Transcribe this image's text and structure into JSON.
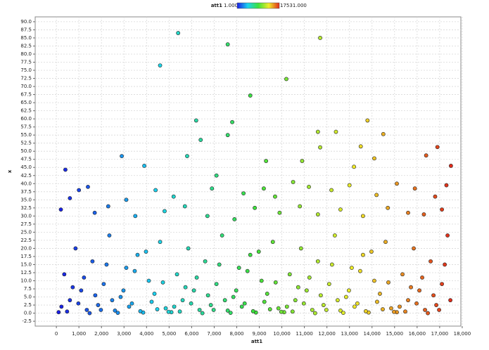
{
  "chart_data": {
    "type": "scatter",
    "color_title": "att1",
    "color_min": {
      "value": 1,
      "label": "1.000"
    },
    "color_max": {
      "value": 17531,
      "label": "17531.000"
    },
    "colormap": [
      "#1a1ae6",
      "#1ad2f0",
      "#3ce23c",
      "#f0ec28",
      "#e02a1a"
    ],
    "xlabel": "att1",
    "ylabel": "x",
    "grid": true,
    "xlim": [
      -940,
      17940
    ],
    "ylim": [
      -4,
      91.5
    ],
    "xticks": [
      0,
      {
        "value": 1000,
        "label": "1,000"
      },
      {
        "value": 2000,
        "label": "2,000"
      },
      {
        "value": 3000,
        "label": "3,000"
      },
      {
        "value": 4000,
        "label": "4,000"
      },
      {
        "value": 5000,
        "label": "5,000"
      },
      {
        "value": 6000,
        "label": "6,000"
      },
      {
        "value": 7000,
        "label": "7,000"
      },
      {
        "value": 8000,
        "label": "8,000"
      },
      {
        "value": 9000,
        "label": "9,000"
      },
      {
        "value": 10000,
        "label": "10,000"
      },
      {
        "value": 11000,
        "label": "11,000"
      },
      {
        "value": 12000,
        "label": "12,000"
      },
      {
        "value": 13000,
        "label": "13,000"
      },
      {
        "value": 14000,
        "label": "14,000"
      },
      {
        "value": 15000,
        "label": "15,000"
      },
      {
        "value": 16000,
        "label": "16,000"
      },
      {
        "value": 17000,
        "label": "17,000"
      },
      {
        "value": 18000,
        "label": "18,000"
      }
    ],
    "yticks": [
      -2.5,
      {
        "value": 0,
        "label": "0.0"
      },
      2.5,
      {
        "value": 5,
        "label": "5.0"
      },
      7.5,
      {
        "value": 10,
        "label": "10.0"
      },
      12.5,
      {
        "value": 15,
        "label": "15.0"
      },
      17.5,
      {
        "value": 20,
        "label": "20.0"
      },
      22.5,
      {
        "value": 25,
        "label": "25.0"
      },
      27.5,
      {
        "value": 30,
        "label": "30.0"
      },
      32.5,
      {
        "value": 35,
        "label": "35.0"
      },
      37.5,
      {
        "value": 40,
        "label": "40.0"
      },
      42.5,
      {
        "value": 45,
        "label": "45.0"
      },
      47.5,
      {
        "value": 50,
        "label": "50.0"
      },
      52.5,
      {
        "value": 55,
        "label": "55.0"
      },
      57.5,
      {
        "value": 60,
        "label": "60.0"
      },
      62.5,
      {
        "value": 65,
        "label": "65.0"
      },
      67.5,
      {
        "value": 70,
        "label": "70.0"
      },
      72.5,
      {
        "value": 75,
        "label": "75.0"
      },
      77.5,
      {
        "value": 80,
        "label": "80.0"
      },
      82.5,
      {
        "value": 85,
        "label": "85.0"
      },
      87.5,
      {
        "value": 90,
        "label": "90.0"
      }
    ],
    "x": [
      5400,
      11700,
      7600,
      4600,
      10200,
      8600,
      6200,
      7800,
      13800,
      11600,
      12400,
      7600,
      14500,
      6400,
      11700,
      13500,
      16900,
      2900,
      5800,
      16400,
      17500,
      400,
      3900,
      9300,
      10900,
      13200,
      14100,
      7100,
      1000,
      1400,
      600,
      2300,
      3100,
      4400,
      5200,
      6900,
      8300,
      9200,
      9700,
      10500,
      11200,
      12200,
      13000,
      14200,
      15100,
      15900,
      16800,
      17300,
      200,
      1700,
      3500,
      4800,
      5700,
      6700,
      7900,
      8800,
      9900,
      10800,
      11600,
      12600,
      13600,
      14700,
      15600,
      16300,
      17100,
      100,
      350,
      600,
      850,
      1100,
      1350,
      1600,
      1850,
      2100,
      2350,
      2600,
      2850,
      3100,
      3350,
      3600,
      3850,
      4100,
      4350,
      4600,
      4850,
      5100,
      5350,
      5600,
      5850,
      6100,
      6350,
      6600,
      6850,
      7100,
      7350,
      7600,
      7850,
      8100,
      8350,
      8600,
      8850,
      9100,
      9350,
      9600,
      9850,
      10100,
      10350,
      10600,
      10850,
      11100,
      11350,
      11600,
      11850,
      12100,
      12350,
      12600,
      12850,
      13100,
      13350,
      13600,
      13850,
      14100,
      14350,
      14600,
      14850,
      15100,
      15350,
      15600,
      15850,
      16100,
      16350,
      16600,
      16850,
      17100,
      17350,
      225,
      475,
      725,
      975,
      1225,
      1475,
      1725,
      1975,
      2225,
      2475,
      2725,
      2975,
      3225,
      3475,
      3725,
      3975,
      4225,
      4475,
      4725,
      4975,
      5225,
      5475,
      5725,
      5975,
      6225,
      6475,
      6725,
      6975,
      7225,
      7475,
      7725,
      7975,
      8225,
      8475,
      8725,
      8975,
      9225,
      9475,
      9725,
      9975,
      10225,
      10475,
      10725,
      10975,
      11225,
      11475,
      11725,
      11975,
      12225,
      12475,
      12725,
      12975,
      13225,
      13475,
      13725,
      13975,
      14225,
      14475,
      14725,
      14975,
      15225,
      15475,
      15725,
      15975,
      16225,
      16475,
      16725,
      16975,
      17225,
      17475
    ],
    "values": [
      86.5,
      85,
      83,
      76.5,
      72.3,
      67.2,
      59.5,
      59,
      59.5,
      56,
      56,
      55,
      55.3,
      53.5,
      51.2,
      51.5,
      51.3,
      48.5,
      48.5,
      48.7,
      45.5,
      44.3,
      45.5,
      47,
      47,
      45.2,
      47.8,
      42.5,
      38,
      39,
      35.5,
      33,
      35,
      38,
      36,
      38.5,
      37,
      38.5,
      36,
      40.5,
      39,
      38,
      39.5,
      36.5,
      40,
      38.5,
      36,
      39.5,
      32,
      31,
      30,
      31.5,
      33,
      30,
      29,
      32.5,
      31,
      33,
      30.5,
      32,
      30,
      32.5,
      31,
      30.5,
      32,
      0.3,
      12,
      4,
      20,
      7,
      1,
      16,
      2.5,
      9,
      24,
      0.8,
      5,
      14,
      3,
      18,
      0.2,
      10,
      6,
      22,
      1.5,
      0.3,
      12,
      4,
      20,
      7,
      1,
      16,
      2.5,
      9,
      24,
      0.8,
      5,
      14,
      3,
      18,
      0.2,
      10,
      6,
      22,
      1.5,
      0.3,
      12,
      4,
      20,
      7,
      1,
      16,
      2.5,
      9,
      24,
      0.8,
      5,
      14,
      3,
      18,
      0.2,
      10,
      6,
      22,
      1.5,
      0.3,
      12,
      4,
      20,
      7,
      1,
      16,
      2.5,
      9,
      24,
      2,
      0.5,
      8,
      3,
      11,
      0,
      5.5,
      1,
      15,
      4,
      0.1,
      7,
      2,
      13,
      0.6,
      19,
      3.5,
      1.2,
      9.5,
      0.4,
      2,
      0.5,
      8,
      3,
      11,
      0,
      5.5,
      1,
      15,
      4,
      0.1,
      7,
      2,
      13,
      0.6,
      19,
      3.5,
      1.2,
      9.5,
      0.4,
      2,
      0.5,
      8,
      3,
      11,
      0,
      5.5,
      1,
      15,
      4,
      0.1,
      7,
      2,
      13,
      0.6,
      19,
      3.5,
      1.2,
      9.5,
      0.4,
      2,
      0.5,
      8,
      3,
      11,
      0,
      5.5,
      1,
      15,
      4
    ]
  }
}
